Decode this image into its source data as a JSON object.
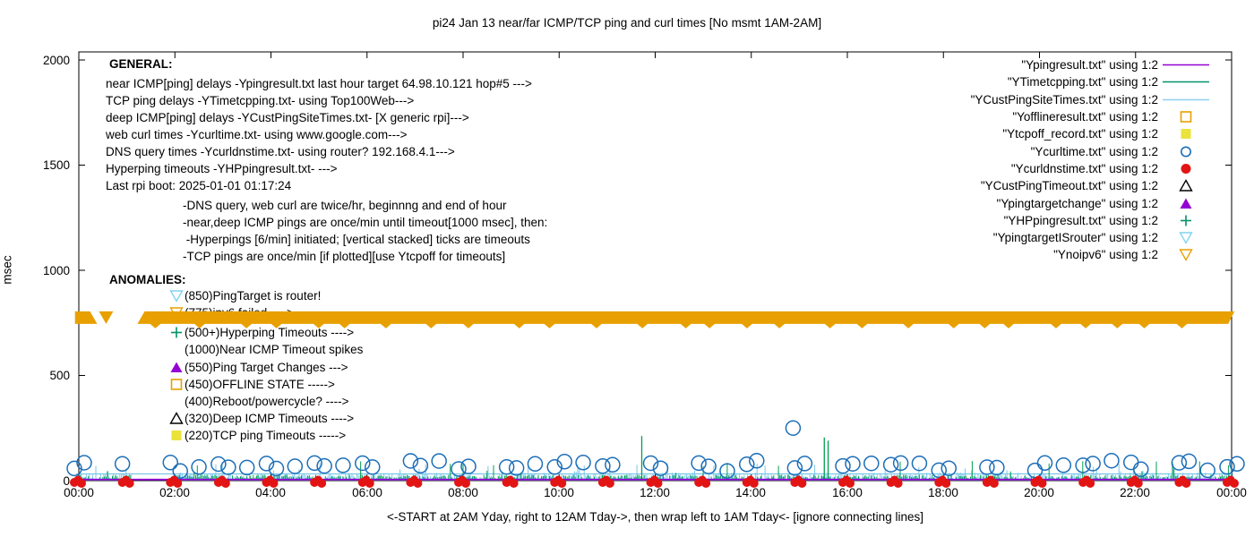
{
  "title": "pi24 Jan 13  near/far ICMP/TCP ping and curl times [No msmt 1AM-2AM]",
  "axes": {
    "ylabel": "msec",
    "y_ticks": [
      "0",
      "500",
      "1000",
      "1500",
      "2000"
    ],
    "x_ticks": [
      "00:00",
      "02:00",
      "04:00",
      "06:00",
      "08:00",
      "10:00",
      "12:00",
      "14:00",
      "16:00",
      "18:00",
      "20:00",
      "22:00",
      "00:00"
    ],
    "x_note": "<-START at 2AM Yday, right to 12AM Tday->, then wrap left to 1AM Tday<- [ignore connecting lines]"
  },
  "legend": [
    {
      "label": "\"Ypingresult.txt\" using 1:2",
      "sample": "line",
      "color": "#9400d3"
    },
    {
      "label": "\"YTimetcpping.txt\" using 1:2",
      "sample": "line",
      "color": "#00936c"
    },
    {
      "label": "\"YCustPingSiteTimes.txt\" using 1:2",
      "sample": "line",
      "color": "#8dcff0"
    },
    {
      "label": "\"Yofflineresult.txt\" using 1:2",
      "sample": "square-open",
      "color": "#e8a000"
    },
    {
      "label": "\"Ytcpoff_record.txt\" using 1:2",
      "sample": "square-filled",
      "color": "#ebe23c"
    },
    {
      "label": "\"Ycurltime.txt\" using 1:2",
      "sample": "circle-open",
      "color": "#1c6eb8"
    },
    {
      "label": "\"Ycurldnstime.txt\" using 1:2",
      "sample": "circle-filled",
      "color": "#e21414"
    },
    {
      "label": "\"YCustPingTimeout.txt\" using 1:2",
      "sample": "tri-up-open",
      "color": "#000000"
    },
    {
      "label": "\"Ypingtargetchange\" using 1:2",
      "sample": "tri-up-filled",
      "color": "#9400d3"
    },
    {
      "label": "\"YHPpingresult.txt\" using 1:2",
      "sample": "plus",
      "color": "#00936c"
    },
    {
      "label": "\"YpingtargetISrouter\" using 1:2",
      "sample": "tri-down-open",
      "color": "#80d4f0"
    },
    {
      "label": "\"Ynoipv6\" using 1:2",
      "sample": "tri-down-open",
      "color": "#e8a000"
    }
  ],
  "general": {
    "heading": "GENERAL:",
    "lines": [
      "near ICMP[ping] delays -Ypingresult.txt last hour target 64.98.10.121 hop#5 --->",
      "TCP ping delays -YTimetcpping.txt- using Top100Web--->",
      "deep ICMP[ping] delays -YCustPingSiteTimes.txt- [X generic rpi]--->",
      "web curl times -Ycurltime.txt- using www.google.com--->",
      "DNS query times -Ycurldnstime.txt- using router? 192.168.4.1--->",
      "Hyperping timeouts -YHPpingresult.txt- --->",
      "Last rpi boot: 2025-01-01 01:17:24"
    ],
    "indent_lines": [
      "-DNS query, web curl are twice/hr, beginnng and end of hour",
      "-near,deep ICMP pings are once/min until timeout[1000 msec], then:",
      " -Hyperpings [6/min] initiated; [vertical stacked] ticks are timeouts",
      "-TCP pings are once/min [if plotted][use Ytcpoff for timeouts]"
    ]
  },
  "anomalies": {
    "heading": "ANOMALIES:",
    "items": [
      {
        "marker": "tri-down-open",
        "color": "#80d4f0",
        "text": "(850)PingTarget is router!"
      },
      {
        "marker": "tri-down-open",
        "color": "#e8a000",
        "text": "(775)ipv6 failed ---->"
      },
      {
        "marker": "plus",
        "color": "#00936c",
        "text": "(500+)Hyperping Timeouts ---->"
      },
      {
        "marker": "",
        "color": "",
        "text": "(1000)Near ICMP Timeout spikes"
      },
      {
        "marker": "tri-up-filled",
        "color": "#9400d3",
        "text": "(550)Ping Target Changes --->"
      },
      {
        "marker": "square-open",
        "color": "#e8a000",
        "text": "(450)OFFLINE STATE ----->"
      },
      {
        "marker": "",
        "color": "",
        "text": "(400)Reboot/powercycle? ---->"
      },
      {
        "marker": "tri-up-open",
        "color": "#000000",
        "text": "(320)Deep ICMP Timeouts ---->"
      },
      {
        "marker": "square-filled",
        "color": "#ebe23c",
        "text": "(220)TCP ping Timeouts ----->"
      }
    ]
  },
  "chart_data": {
    "type": "line",
    "title": "pi24 Jan 13  near/far ICMP/TCP ping and curl times [No msmt 1AM-2AM]",
    "ylabel": "msec",
    "ylim": [
      0,
      2040
    ],
    "xlim_hours": [
      0,
      24
    ],
    "x_ticks": [
      "00:00",
      "02:00",
      "04:00",
      "06:00",
      "08:00",
      "10:00",
      "12:00",
      "14:00",
      "16:00",
      "18:00",
      "20:00",
      "22:00",
      "00:00"
    ],
    "grid": false,
    "legend_position": "top-right",
    "no_measurement_gap_hours": [
      1.08,
      2.0
    ],
    "series": [
      {
        "name": "Ypingresult.txt",
        "style": "line",
        "color": "#9400d3",
        "baseline_msec": 5,
        "desc": "near ICMP ping delay, flat line just above 0 across full day"
      },
      {
        "name": "YTimetcpping.txt",
        "style": "noise",
        "color": "#00a050",
        "noise_msec": [
          2,
          28
        ],
        "tall_chance": 0.05,
        "tall_msec": [
          35,
          95
        ],
        "tall_spikes": [
          {
            "hour": 11.72,
            "msec": 212
          },
          {
            "hour": 15.52,
            "msec": 205
          },
          {
            "hour": 15.6,
            "msec": 190
          }
        ],
        "desc": "TCP ping delays, dense grass of small spikes 0-100 msec with isolated spikes ~200 msec"
      },
      {
        "name": "YCustPingSiteTimes.txt",
        "style": "noise",
        "color": "#79c7e8",
        "baseline_msec": 32,
        "noise_msec": [
          5,
          38
        ],
        "tall_chance": 0.07,
        "tall_msec": [
          40,
          90
        ],
        "desc": "deep ICMP ping delays, dense spikes 0-100 msec plus continuous line near 32 msec"
      },
      {
        "name": "Yofflineresult.txt",
        "style": "marker",
        "marker": "square-open",
        "color": "#e8a000",
        "points": [],
        "anomaly_level_msec": 450
      },
      {
        "name": "Ytcpoff_record.txt",
        "style": "marker",
        "marker": "square-filled",
        "color": "#ebe23c",
        "points": [],
        "anomaly_level_msec": 220
      },
      {
        "name": "Ycurltime.txt",
        "style": "marker",
        "marker": "circle-open",
        "color": "#1c6eb8",
        "pattern": "pair of overlapping circles twice per hour at every hour mark, values ~45-95 msec",
        "value_range_msec": [
          45,
          95
        ],
        "outlier": {
          "hour": 14.87,
          "msec": 250
        }
      },
      {
        "name": "Ycurldnstime.txt",
        "style": "marker",
        "marker": "circle-filled",
        "color": "#e21414",
        "pattern": "cluster of filled dots at every hour on the 0 line",
        "value_msec": 0
      },
      {
        "name": "YCustPingTimeout.txt",
        "style": "marker",
        "marker": "tri-up-open",
        "color": "#000000",
        "points": [],
        "anomaly_level_msec": 320
      },
      {
        "name": "Ypingtargetchange",
        "style": "marker",
        "marker": "tri-up-filled",
        "color": "#9400d3",
        "points": [],
        "anomaly_level_msec": 550
      },
      {
        "name": "YHPpingresult.txt",
        "style": "marker",
        "marker": "plus",
        "color": "#00936c",
        "points": [],
        "anomaly_level_msec": 500
      },
      {
        "name": "YpingtargetISrouter",
        "style": "marker",
        "marker": "tri-down-open",
        "color": "#80d4f0",
        "points": [],
        "anomaly_level_msec": 850
      },
      {
        "name": "Ynoipv6",
        "style": "band",
        "marker": "tri-down-open",
        "color": "#e8a000",
        "band_msec": 775,
        "segments_hours": [
          [
            -0.08,
            0.68
          ],
          [
            1.22,
            24.06
          ]
        ],
        "desc": "continuous band of overlapping down-triangles at 775 msec all day except ~00:40-01:13"
      }
    ]
  }
}
